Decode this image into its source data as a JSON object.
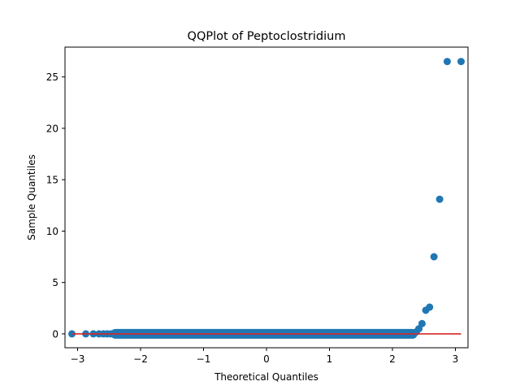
{
  "chart_data": {
    "type": "scatter",
    "title": "QQPlot of Peptoclostridium",
    "xlabel": "Theoretical Quantiles",
    "ylabel": "Sample Quantiles",
    "xlim": [
      -3.2,
      3.2
    ],
    "ylim": [
      -1.35,
      27.9
    ],
    "xticks": [
      -3,
      -2,
      -1,
      0,
      1,
      2,
      3
    ],
    "xtick_labels": [
      "−3",
      "−2",
      "−1",
      "0",
      "1",
      "2",
      "3"
    ],
    "yticks": [
      0,
      5,
      10,
      15,
      20,
      25
    ],
    "ytick_labels": [
      "0",
      "5",
      "10",
      "15",
      "20",
      "25"
    ],
    "grid": false,
    "legend": "none",
    "marker_color": "#1f77b4",
    "line_color": "#d62728",
    "reference_line": {
      "x": [
        -3.09,
        3.09
      ],
      "y": [
        0,
        0
      ]
    },
    "series": [
      {
        "x": [
          -3.09,
          -2.87,
          -2.75,
          -2.66,
          -2.59,
          -2.53,
          -2.47,
          -2.42,
          2.34,
          2.38,
          2.42,
          2.47,
          2.53,
          2.59,
          2.66,
          2.75,
          2.87,
          3.09
        ],
        "y": [
          0,
          0,
          0,
          0,
          0,
          0,
          0,
          0,
          0.05,
          0.2,
          0.5,
          1.0,
          2.3,
          2.6,
          7.5,
          13.1,
          26.5,
          26.5
        ]
      }
    ],
    "dense_band": {
      "x_start": -2.4,
      "x_end": 2.32,
      "y": 0
    }
  }
}
